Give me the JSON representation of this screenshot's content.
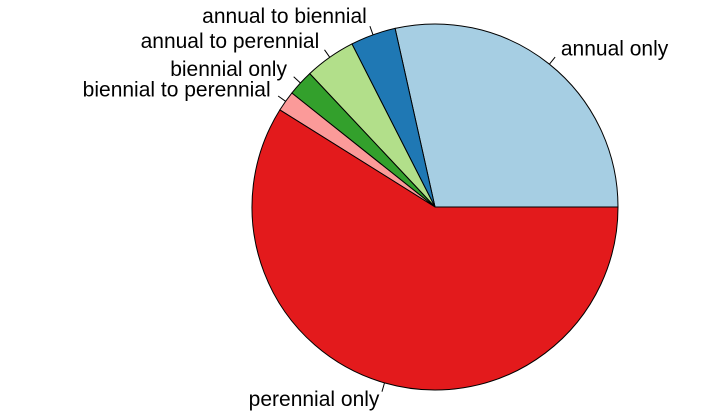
{
  "chart_data": {
    "type": "pie",
    "categories": [
      "annual only",
      "annual to biennial",
      "annual to perennial",
      "biennial only",
      "biennial to perennial",
      "perennial only"
    ],
    "values": [
      28.5,
      4,
      4.5,
      2.3,
      1.8,
      58.9
    ],
    "colors": [
      "#a6cee3",
      "#1f78b4",
      "#b2df8a",
      "#33a02c",
      "#fb9a99",
      "#e31a1c"
    ]
  }
}
